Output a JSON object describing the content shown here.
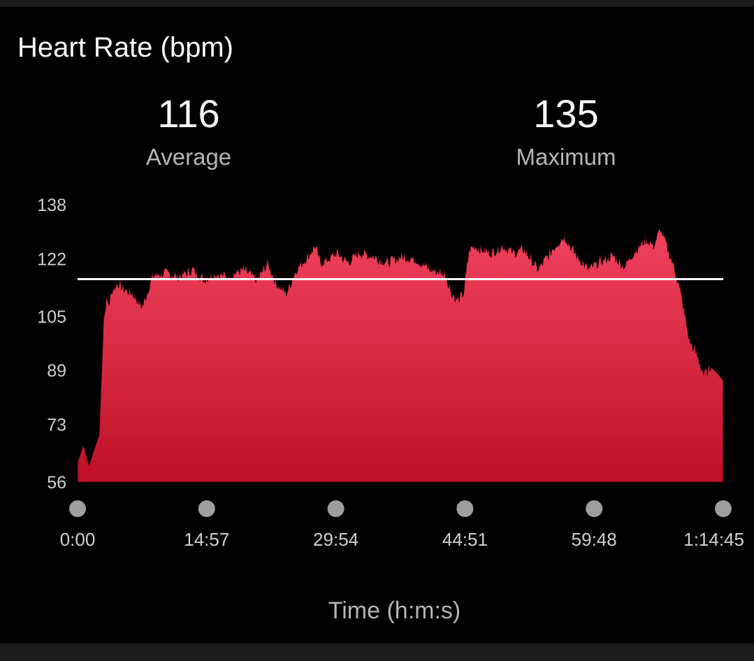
{
  "header": {
    "title": "Heart Rate (bpm)"
  },
  "stats": {
    "average": {
      "value": "116",
      "label": "Average"
    },
    "maximum": {
      "value": "135",
      "label": "Maximum"
    }
  },
  "chart_data": {
    "type": "area",
    "title": "Heart Rate (bpm)",
    "xlabel": "Time (h:m:s)",
    "ylabel": "",
    "ylim": [
      56,
      138
    ],
    "xlim_seconds": [
      0,
      4485
    ],
    "y_ticks": [
      "138",
      "122",
      "105",
      "89",
      "73",
      "56"
    ],
    "y_tick_values": [
      138,
      122,
      105,
      89,
      73,
      56
    ],
    "x_ticks": [
      "0:00",
      "14:57",
      "29:54",
      "44:51",
      "59:48",
      "1:14:45"
    ],
    "x_tick_seconds": [
      0,
      897,
      1794,
      2691,
      3588,
      4485
    ],
    "average_line": 116,
    "colors": {
      "fill_top": "#f0425e",
      "fill_bottom": "#c01027",
      "average_line": "#ffffff",
      "tick_marker": "#9e9e9e"
    },
    "series": [
      {
        "x": [
          0,
          40,
          80,
          110,
          150,
          180,
          200,
          220,
          240,
          280,
          330,
          380,
          450,
          520,
          600,
          700,
          800,
          880,
          950,
          1050,
          1150,
          1250,
          1320,
          1380,
          1450,
          1520,
          1600,
          1650,
          1690,
          1740,
          1800,
          1880,
          1950,
          2050,
          2150,
          2250,
          2350,
          2450,
          2550,
          2600,
          2640,
          2680,
          2720,
          2760,
          2800,
          2880,
          2950,
          3030,
          3100,
          3200,
          3300,
          3380,
          3450,
          3550,
          3650,
          3720,
          3800,
          3880,
          3950,
          4000,
          4050,
          4100,
          4150,
          4200,
          4250,
          4300,
          4350,
          4400,
          4450,
          4485
        ],
        "y": [
          62,
          67,
          61,
          65,
          70,
          104,
          110,
          109,
          113,
          115,
          113,
          112,
          108,
          117,
          118,
          117,
          119,
          116,
          118,
          117,
          119,
          116,
          121,
          115,
          112,
          119,
          123,
          126,
          121,
          122,
          124,
          121,
          124,
          123,
          121,
          123,
          122,
          119,
          118,
          112,
          110,
          112,
          125,
          126,
          125,
          124,
          126,
          124,
          125,
          119,
          125,
          129,
          124,
          119,
          122,
          123,
          120,
          125,
          128,
          126,
          131,
          125,
          119,
          110,
          98,
          94,
          88,
          90,
          88,
          86
        ]
      }
    ]
  }
}
